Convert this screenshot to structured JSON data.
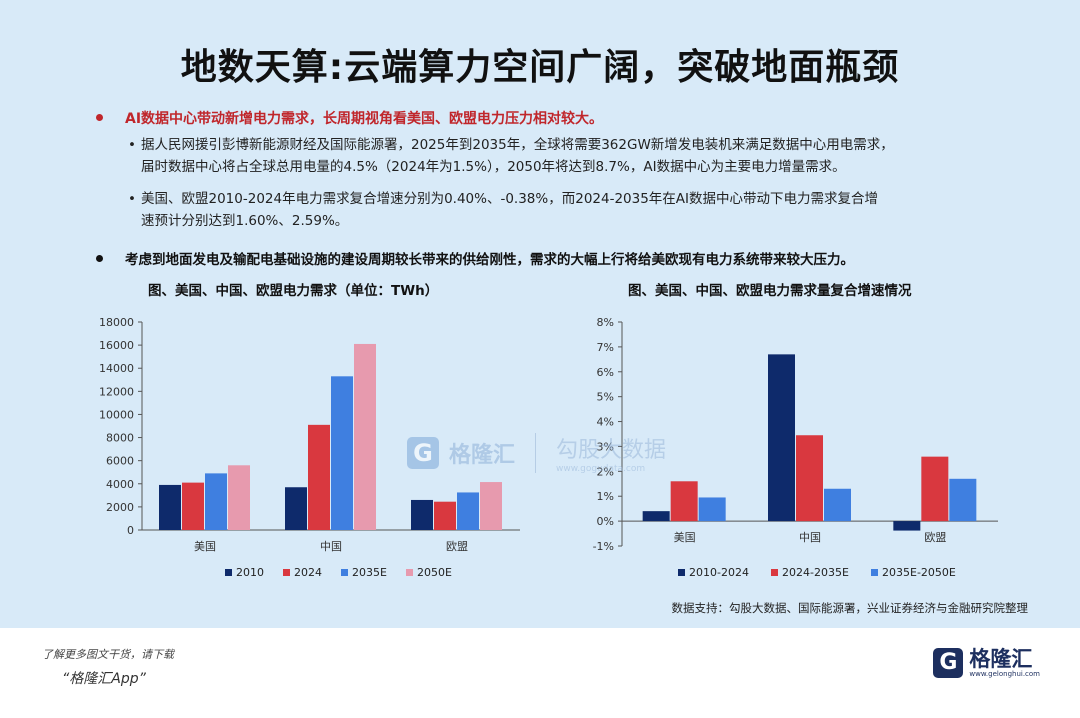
{
  "title": "地数天算:云端算力空间广阔，突破地面瓶颈",
  "bullet1": "AI数据中心带动新增电力需求，长周期视角看美国、欧盟电力压力相对较大。",
  "sub1_line1": "据人民网援引彭博新能源财经及国际能源署，2025年到2035年，全球将需要362GW新增发电装机来满足数据中心用电需求，",
  "sub1_line2": "届时数据中心将占全球总用电量的4.5%（2024年为1.5%），2050年将达到8.7%，AI数据中心为主要电力增量需求。",
  "sub2_line1": "美国、欧盟2010-2024年电力需求复合增速分别为0.40%、-0.38%，而2024-2035年在AI数据中心带动下电力需求复合增",
  "sub2_line2": "速预计分别达到1.60%、2.59%。",
  "bullet2": "考虑到地面发电及输配电基础设施的建设周期较长带来的供给刚性，需求的大幅上行将给美欧现有电力系统带来较大压力。",
  "sub_bullet": "•",
  "source": "数据支持：勾股大数据、国际能源署，兴业证券经济与金融研究院整理",
  "watermark": {
    "logo": "G",
    "name": "格隆汇",
    "gg": "勾股大数据",
    "url": "www.gogudata.com"
  },
  "footer": {
    "line1": "了解更多图文干货，请下载",
    "line2": "“格隆汇App”",
    "brand_logo": "G",
    "brand_name": "格隆汇",
    "brand_url": "www.gelonghui.com"
  },
  "chart_data": [
    {
      "type": "bar",
      "title": "图、美国、中国、欧盟电力需求（单位：TWh）",
      "categories": [
        "美国",
        "中国",
        "欧盟"
      ],
      "series": [
        {
          "name": "2010",
          "color": "#0e2a6b",
          "values": [
            3900,
            3700,
            2600
          ]
        },
        {
          "name": "2024",
          "color": "#d9383f",
          "values": [
            4100,
            9100,
            2450
          ]
        },
        {
          "name": "2035E",
          "color": "#3f7fe0",
          "values": [
            4900,
            13300,
            3250
          ]
        },
        {
          "name": "2050E",
          "color": "#e79aae",
          "values": [
            5600,
            16100,
            4150
          ]
        }
      ],
      "ylim": [
        0,
        18000
      ],
      "yticks": [
        "0",
        "2000",
        "4000",
        "6000",
        "8000",
        "10000",
        "12000",
        "14000",
        "16000",
        "18000"
      ],
      "legend": "bottom"
    },
    {
      "type": "bar",
      "title": "图、美国、中国、欧盟电力需求量复合增速情况",
      "categories": [
        "美国",
        "中国",
        "欧盟"
      ],
      "series": [
        {
          "name": "2010-2024",
          "color": "#0e2a6b",
          "values": [
            0.4,
            6.7,
            -0.38
          ]
        },
        {
          "name": "2024-2035E",
          "color": "#d9383f",
          "values": [
            1.6,
            3.45,
            2.59
          ]
        },
        {
          "name": "2035E-2050E",
          "color": "#3f7fe0",
          "values": [
            0.95,
            1.3,
            1.7
          ]
        }
      ],
      "ylim": [
        -1,
        8
      ],
      "yticks": [
        "-1%",
        "0%",
        "1%",
        "2%",
        "3%",
        "4%",
        "5%",
        "6%",
        "7%",
        "8%"
      ],
      "legend": "bottom"
    }
  ]
}
